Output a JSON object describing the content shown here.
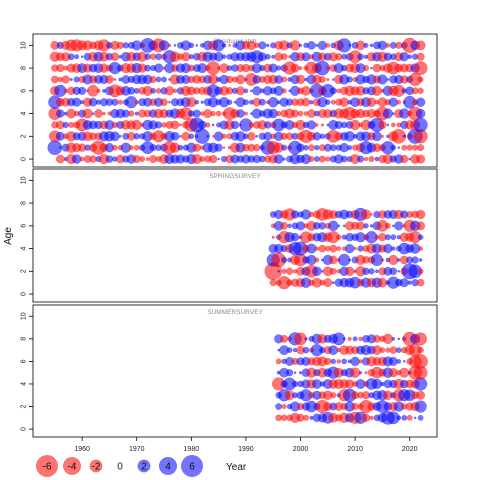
{
  "chart_data": {
    "type": "scatter",
    "subtype": "bubble-residuals",
    "ylabel": "Age",
    "xlabel": "Year",
    "xlim": [
      1951,
      2025
    ],
    "ylim": [
      -0.7,
      11
    ],
    "x_ticks": [
      "1960",
      "1970",
      "1980",
      "1990",
      "2000",
      "2010",
      "2020"
    ],
    "y_ticks": [
      "0",
      "2",
      "4",
      "6",
      "8",
      "10"
    ],
    "colors": {
      "positive": "#0000ff",
      "negative": "#ff0000",
      "axis": "#000000",
      "title": "#8a8a8a"
    },
    "legend": {
      "values": [
        "-6",
        "-4",
        "-2",
        "0",
        "2",
        "4",
        "6"
      ],
      "placement": "bottom-left"
    },
    "panels": [
      {
        "title": "Residual catch",
        "years": [
          1955,
          2022
        ],
        "ages": [
          0,
          10
        ],
        "min_age_first_year": 1,
        "points": [
          [
            1955,
            1,
            3.2
          ],
          [
            1955,
            5,
            2.6
          ],
          [
            1955,
            4,
            -2.4
          ],
          [
            1955,
            2,
            -2.0
          ],
          [
            1956,
            6,
            2.2
          ],
          [
            1958,
            10,
            -2.0
          ],
          [
            1959,
            10,
            -2.2
          ],
          [
            1960,
            3,
            -2.4
          ],
          [
            1962,
            6,
            -2.0
          ],
          [
            1963,
            1,
            -3.0
          ],
          [
            1964,
            10,
            -2.2
          ],
          [
            1966,
            6,
            -2.4
          ],
          [
            1966,
            8,
            2.2
          ],
          [
            1972,
            1,
            2.4
          ],
          [
            1972,
            10,
            3.2
          ],
          [
            1974,
            10,
            -2.8
          ],
          [
            1976,
            9,
            2.6
          ],
          [
            1979,
            4,
            -2.4
          ],
          [
            1980,
            3,
            -2.8
          ],
          [
            1981,
            3,
            3.2
          ],
          [
            1982,
            2,
            3.4
          ],
          [
            1984,
            8,
            -2.8
          ],
          [
            1984,
            6,
            2.4
          ],
          [
            1987,
            4,
            -2.4
          ],
          [
            1990,
            3,
            2.6
          ],
          [
            1991,
            7,
            -2.4
          ],
          [
            1994,
            1,
            3.0
          ],
          [
            1995,
            1,
            -2.6
          ],
          [
            1996,
            3,
            2.4
          ],
          [
            1998,
            8,
            -2.6
          ],
          [
            1999,
            1,
            2.8
          ],
          [
            2001,
            2,
            -2.6
          ],
          [
            2002,
            8,
            -2.4
          ],
          [
            2003,
            6,
            3.0
          ],
          [
            2004,
            8,
            3.2
          ],
          [
            2005,
            6,
            2.8
          ],
          [
            2008,
            10,
            3.0
          ],
          [
            2009,
            4,
            -2.6
          ],
          [
            2012,
            1,
            2.6
          ],
          [
            2014,
            3,
            3.0
          ],
          [
            2015,
            4,
            -2.8
          ],
          [
            2016,
            1,
            2.6
          ],
          [
            2017,
            8,
            -2.4
          ],
          [
            2018,
            2,
            -3.2
          ],
          [
            2020,
            10,
            -3.4
          ],
          [
            2021,
            7,
            -2.6
          ],
          [
            2021,
            2,
            3.4
          ],
          [
            2021,
            4,
            -2.8
          ],
          [
            2022,
            8,
            -2.8
          ],
          [
            2022,
            3,
            3.0
          ],
          [
            2022,
            2,
            -3.0
          ],
          [
            2020,
            5,
            2.4
          ],
          [
            2018,
            6,
            -2.2
          ],
          [
            2006,
            2,
            -2.4
          ],
          [
            1976,
            1,
            -2.6
          ],
          [
            1969,
            5,
            2.2
          ],
          [
            1992,
            9,
            2.4
          ],
          [
            1985,
            10,
            2.2
          ],
          [
            1974,
            2,
            -2.2
          ],
          [
            2010,
            9,
            -2.4
          ]
        ]
      },
      {
        "title": "SPRINGSURVEY",
        "years": [
          1995,
          2022
        ],
        "ages": [
          1,
          7
        ],
        "points": [
          [
            1995,
            2,
            -4.6
          ],
          [
            1995,
            3,
            2.6
          ],
          [
            1996,
            3,
            -3.2
          ],
          [
            1997,
            1,
            -2.6
          ],
          [
            1997,
            5,
            -2.2
          ],
          [
            1998,
            7,
            -2.2
          ],
          [
            1999,
            4,
            2.6
          ],
          [
            2000,
            3,
            -2.4
          ],
          [
            2000,
            4,
            3.0
          ],
          [
            2001,
            5,
            -2.0
          ],
          [
            2002,
            2,
            -2.4
          ],
          [
            2004,
            7,
            -2.4
          ],
          [
            2006,
            5,
            -2.2
          ],
          [
            2008,
            3,
            2.2
          ],
          [
            2010,
            1,
            2.0
          ],
          [
            2011,
            7,
            2.6
          ],
          [
            2013,
            5,
            2.2
          ],
          [
            2014,
            3,
            2.2
          ],
          [
            2015,
            6,
            -2.0
          ],
          [
            2017,
            1,
            2.2
          ],
          [
            2019,
            4,
            2.0
          ],
          [
            2020,
            2,
            3.8
          ],
          [
            2021,
            2,
            2.8
          ],
          [
            2021,
            5,
            -2.2
          ],
          [
            2020,
            6,
            -2.2
          ]
        ]
      },
      {
        "title": "SUMMERSURVEY",
        "years": [
          1996,
          2022
        ],
        "ages": [
          1,
          8
        ],
        "points": [
          [
            1996,
            4,
            -2.6
          ],
          [
            1997,
            3,
            2.2
          ],
          [
            1998,
            4,
            2.4
          ],
          [
            1999,
            8,
            2.6
          ],
          [
            2000,
            8,
            -2.4
          ],
          [
            2001,
            3,
            2.2
          ],
          [
            2002,
            2,
            2.0
          ],
          [
            2003,
            7,
            2.2
          ],
          [
            2004,
            2,
            -2.6
          ],
          [
            2005,
            1,
            2.0
          ],
          [
            2006,
            5,
            2.2
          ],
          [
            2007,
            8,
            2.4
          ],
          [
            2008,
            3,
            -2.2
          ],
          [
            2009,
            3,
            2.6
          ],
          [
            2010,
            1,
            -2.2
          ],
          [
            2011,
            1,
            2.2
          ],
          [
            2012,
            2,
            -2.6
          ],
          [
            2013,
            4,
            2.0
          ],
          [
            2014,
            5,
            -2.0
          ],
          [
            2015,
            2,
            2.4
          ],
          [
            2016,
            1,
            2.8
          ],
          [
            2017,
            1,
            2.4
          ],
          [
            2018,
            3,
            -2.2
          ],
          [
            2019,
            3,
            2.2
          ],
          [
            2020,
            8,
            -3.0
          ],
          [
            2021,
            5,
            -2.8
          ],
          [
            2021,
            6,
            -2.4
          ],
          [
            2021,
            7,
            -2.4
          ],
          [
            2022,
            2,
            2.2
          ],
          [
            2022,
            8,
            -2.4
          ],
          [
            2022,
            6,
            -3.2
          ],
          [
            2022,
            5,
            -2.8
          ],
          [
            2022,
            4,
            2.6
          ],
          [
            2020,
            3,
            2.0
          ]
        ]
      }
    ]
  }
}
